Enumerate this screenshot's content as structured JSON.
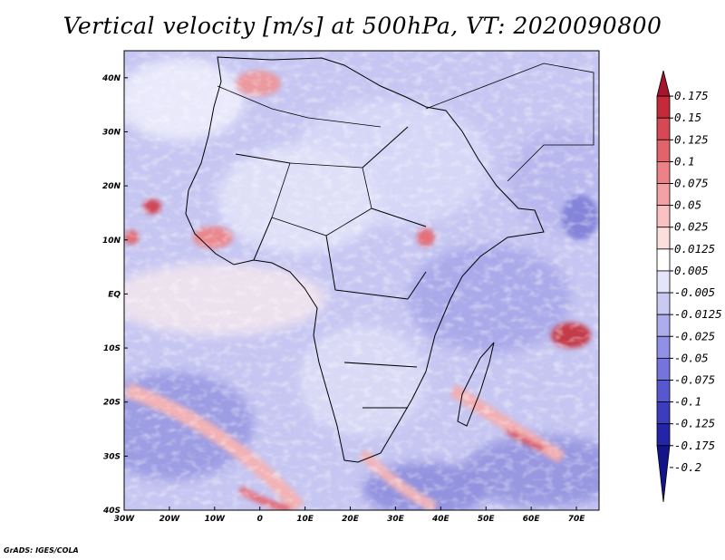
{
  "title": "Vertical velocity [m/s] at 500hPa, VT: 2020090800",
  "footer": "GrADS: IGES/COLA",
  "map": {
    "lat_labels": [
      "40N",
      "30N",
      "20N",
      "10N",
      "EQ",
      "10S",
      "20S",
      "30S",
      "40S"
    ],
    "lon_labels": [
      "30W",
      "20W",
      "10W",
      "0",
      "10E",
      "20E",
      "30E",
      "40E",
      "50E",
      "60E",
      "70E"
    ],
    "lat_range": [
      -40,
      45
    ],
    "lon_range": [
      -30,
      75
    ]
  },
  "colorbar": {
    "labels": [
      "0.175",
      "0.15",
      "0.125",
      "0.1",
      "0.075",
      "0.05",
      "0.025",
      "0.0125",
      "0.005",
      "-0.005",
      "-0.0125",
      "-0.025",
      "-0.05",
      "-0.075",
      "-0.1",
      "-0.125",
      "-0.175",
      "-0.2"
    ],
    "colors": [
      "#a5152b",
      "#c42a3a",
      "#d64854",
      "#e3636b",
      "#ec8288",
      "#f3a1a4",
      "#f8c1c2",
      "#fcdedd",
      "#ffffff",
      "#e4e4fa",
      "#c9c9f4",
      "#adadee",
      "#9090e6",
      "#7474dc",
      "#5757cf",
      "#3c3cbf",
      "#2424a8",
      "#14148a"
    ]
  }
}
